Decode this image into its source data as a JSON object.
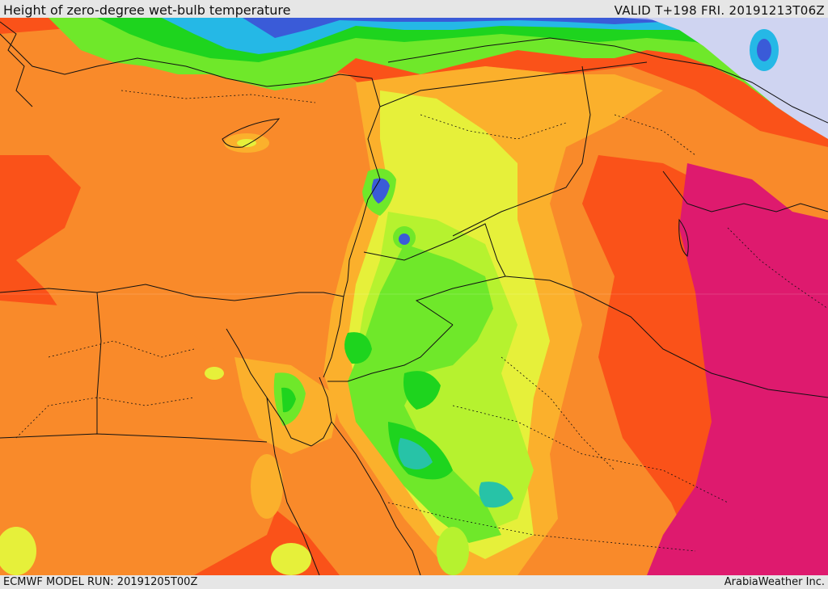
{
  "header": {
    "title": "Height of zero-degree wet-bulb temperature",
    "valid": "VALID T+198 FRI. 20191213T06Z"
  },
  "footer": {
    "model_run": "ECMWF MODEL RUN: 20191205T00Z",
    "credit": "ArabiaWeather Inc."
  },
  "colors": {
    "magenta": "#de1a6e",
    "red_orange": "#fa5219",
    "orange": "#f98a2a",
    "light_orange": "#fbb02c",
    "yellow": "#e6f03a",
    "yellow_green": "#b6f22f",
    "green": "#6fe82a",
    "dark_green": "#1ed41e",
    "teal": "#27c3a7",
    "cyan": "#25b8e6",
    "blue": "#3a5bd8",
    "lavender": "#a3a8ee",
    "pale": "#cfd4f1",
    "borders": "#111111"
  }
}
